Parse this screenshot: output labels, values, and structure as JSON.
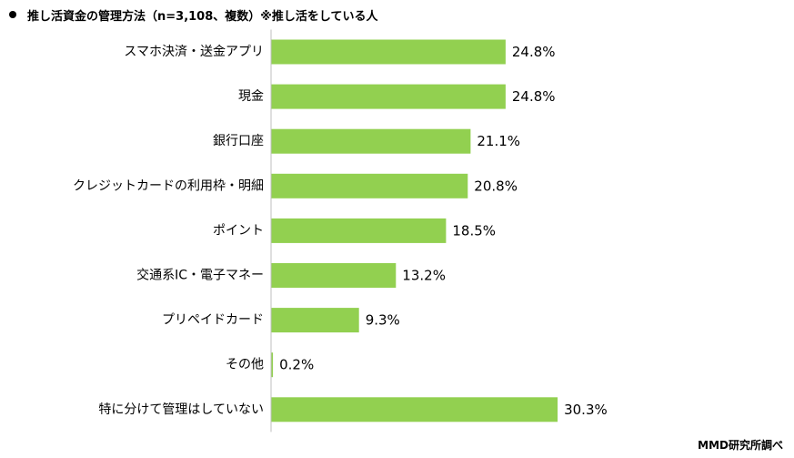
{
  "title": "推し活資金の管理方法（n=3,108、複数）※推し活をしている人",
  "source": "MMD研究所調べ",
  "colors": {
    "bar": "#92d050",
    "axis": "#bfbfbf",
    "text": "#000000"
  },
  "chart_data": {
    "type": "bar",
    "orientation": "horizontal",
    "title": "推し活資金の管理方法（n=3,108、複数）※推し活をしている人",
    "categories": [
      "スマホ決済・送金アプリ",
      "現金",
      "銀行口座",
      "クレジットカードの利用枠・明細",
      "ポイント",
      "交通系IC・電子マネー",
      "プリペイドカード",
      "その他",
      "特に分けて管理はしていない"
    ],
    "values": [
      24.8,
      24.8,
      21.1,
      20.8,
      18.5,
      13.2,
      9.3,
      0.2,
      30.3
    ],
    "value_labels": [
      "24.8%",
      "24.8%",
      "21.1%",
      "20.8%",
      "18.5%",
      "13.2%",
      "9.3%",
      "0.2%",
      "30.3%"
    ],
    "unit": "%",
    "xlabel": "",
    "ylabel": "",
    "xlim": [
      0,
      35
    ],
    "grid": false,
    "legend": "none"
  }
}
